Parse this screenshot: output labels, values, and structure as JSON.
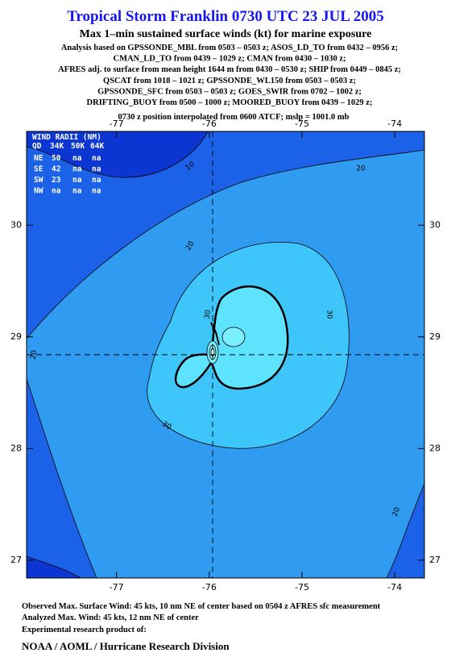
{
  "header": {
    "title": "Tropical Storm Franklin 0730 UTC 23 JUL 2005",
    "subtitle": "Max 1–min sustained surface winds (kt) for marine exposure",
    "analysis_lines": [
      "Analysis based on  GPSSONDE_MBL from 0503 – 0503 z;  ASOS_LD_TO from 0432 – 0956 z;",
      "CMAN_LD_TO from 0439 – 1029 z;  CMAN from 0430 – 1030 z;",
      "AFRES adj. to surface from mean height 1644 m from 0430 – 0530 z;  SHIP from 0449 – 0845 z;",
      "QSCAT from 1018 – 1021 z;  GPSSONDE_WL150 from 0503 – 0503 z;",
      "GPSSONDE_SFC from 0503 – 0503 z;  GOES_SWIR from 0702 – 1002 z;",
      "DRIFTING_BUOY from 0500 – 1000 z;  MOORED_BUOY from 0439 – 1029 z;"
    ],
    "position_note": "0730 z position interpolated from 0600 ATCF; mslp = 1001.0 mb"
  },
  "map": {
    "xlim": [
      -77.97,
      -73.68
    ],
    "ylim": [
      26.84,
      30.84
    ],
    "xticks": [
      -77,
      -76,
      -75,
      -74
    ],
    "yticks": [
      27,
      28,
      29,
      30
    ],
    "contour_labels": [
      10,
      20,
      20,
      20,
      20,
      30,
      30,
      30
    ],
    "wind_radii": {
      "title": "WIND RADII (NM)",
      "columns": [
        "QD",
        "34K",
        "50K",
        "64K"
      ],
      "rows": [
        [
          "NE",
          50,
          "na",
          "na"
        ],
        [
          "SE",
          42,
          "na",
          "na"
        ],
        [
          "SW",
          23,
          "na",
          "na"
        ],
        [
          "NW",
          "na",
          "na",
          "na"
        ]
      ]
    }
  },
  "footer": {
    "lines": [
      "Observed Max. Surface Wind: 45 kts, 10 nm NE of center based on 0504 z AFRES sfc measurement",
      "Analyzed Max. Wind: 45 kts, 12 nm NE of center",
      "Experimental research product of:"
    ],
    "org": "NOAA / AOML / Hurricane Research Division"
  }
}
